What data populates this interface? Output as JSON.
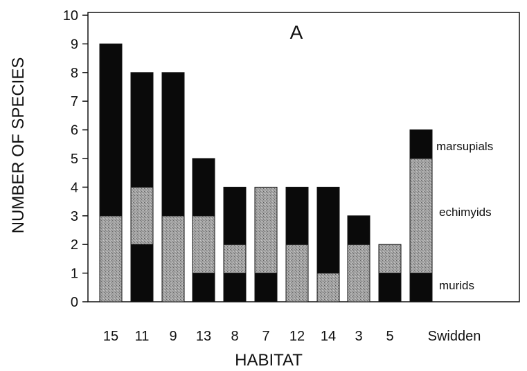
{
  "chart_data": {
    "type": "bar",
    "stacked": true,
    "title": "A",
    "xlabel": "HABITAT",
    "ylabel": "NUMBER OF SPECIES",
    "ylim": [
      0,
      10
    ],
    "yticks": [
      "0",
      "1",
      "2",
      "3",
      "4",
      "5",
      "6",
      "7",
      "8",
      "9",
      "10"
    ],
    "categories": [
      "15",
      "11",
      "9",
      "13",
      "8",
      "7",
      "12",
      "14",
      "3",
      "5",
      "Swidden"
    ],
    "series": [
      {
        "name": "murids",
        "values": [
          0,
          2,
          0,
          1,
          1,
          1,
          0,
          0,
          0,
          1,
          1
        ],
        "color": "#0a0a0a",
        "pattern": false
      },
      {
        "name": "echimyids",
        "values": [
          3,
          2,
          3,
          2,
          1,
          3,
          2,
          1,
          2,
          1,
          4
        ],
        "color": "#9a9a9a",
        "pattern": true
      },
      {
        "name": "marsupials",
        "values": [
          6,
          4,
          5,
          2,
          2,
          0,
          2,
          3,
          1,
          0,
          1
        ],
        "color": "#0a0a0a",
        "pattern": false
      }
    ],
    "legend": "series labels beside right-most bar",
    "grid": false
  }
}
